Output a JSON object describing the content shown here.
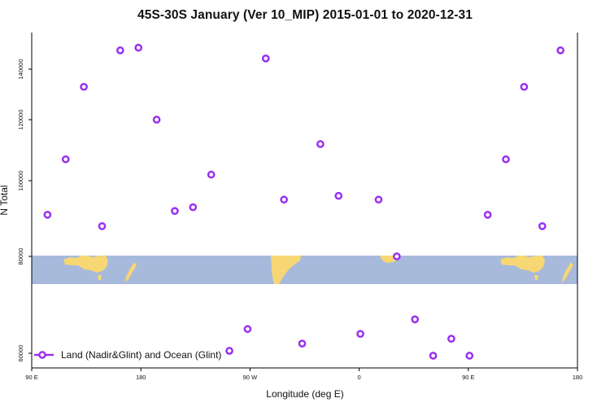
{
  "chart_data": {
    "type": "scatter",
    "title": "45S-30S January (Ver 10_MIP)   2015-01-01 to 2020-12-31",
    "xlabel": "Longitude (deg E)",
    "ylabel": "N Total",
    "x_ticks": [
      "90 E",
      "180",
      "90 W",
      "0",
      "90 E",
      "180"
    ],
    "y_ticks": [
      "60000",
      "80000",
      "100000",
      "120000",
      "140000"
    ],
    "grid": false,
    "legend_position": "bottom-left",
    "series": [
      {
        "name": "Land (Nadir&Glint) and Ocean (Glint)",
        "color": "#9B30F0",
        "marker": "open-circle",
        "points": [
          {
            "x": 103,
            "y": 91000
          },
          {
            "x": 118,
            "y": 107000
          },
          {
            "x": 133,
            "y": 133000
          },
          {
            "x": 148,
            "y": 88000
          },
          {
            "x": 163,
            "y": 147000
          },
          {
            "x": 178,
            "y": 148000
          },
          {
            "x": 193,
            "y": 120000
          },
          {
            "x": 208,
            "y": 92000
          },
          {
            "x": 223,
            "y": 93000
          },
          {
            "x": 238,
            "y": 102000
          },
          {
            "x": 253,
            "y": 60500
          },
          {
            "x": 268,
            "y": 65000
          },
          {
            "x": 283,
            "y": 144000
          },
          {
            "x": 298,
            "y": 95000
          },
          {
            "x": 313,
            "y": 62000
          },
          {
            "x": 328,
            "y": 112000
          },
          {
            "x": 343,
            "y": 96000
          },
          {
            "x": 1,
            "y": 64000
          },
          {
            "x": 16,
            "y": 95000
          },
          {
            "x": 31,
            "y": 80000
          },
          {
            "x": 46,
            "y": 67000
          },
          {
            "x": 61,
            "y": 59500
          },
          {
            "x": 76,
            "y": 63000
          },
          {
            "x": 91,
            "y": 59500
          },
          {
            "x": 106,
            "y": 91000
          },
          {
            "x": 121,
            "y": 107000
          },
          {
            "x": 136,
            "y": 133000
          },
          {
            "x": 151,
            "y": 88000
          },
          {
            "x": 166,
            "y": 147000
          }
        ]
      }
    ]
  }
}
